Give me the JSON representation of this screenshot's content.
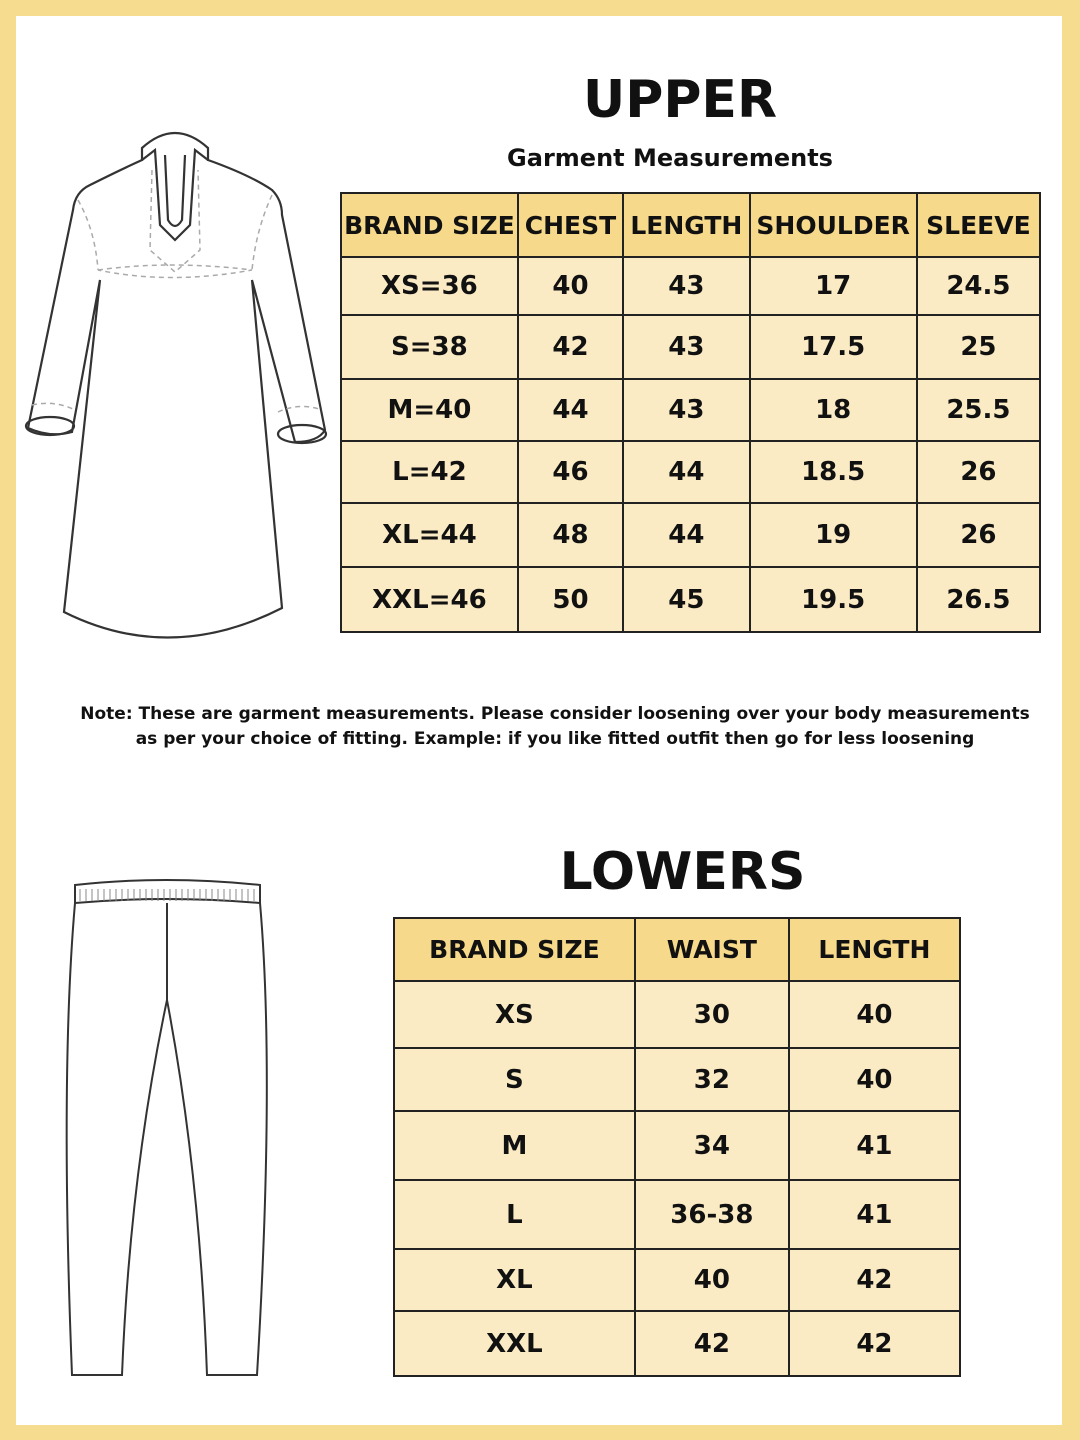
{
  "upper": {
    "title": "UPPER",
    "subtitle": "Garment Measurements",
    "headers": [
      "BRAND SIZE",
      "CHEST",
      "LENGTH",
      "SHOULDER",
      "SLEEVE"
    ],
    "rows": [
      [
        "XS=36",
        "40",
        "43",
        "17",
        "24.5"
      ],
      [
        "S=38",
        "42",
        "43",
        "17.5",
        "25"
      ],
      [
        "M=40",
        "44",
        "43",
        "18",
        "25.5"
      ],
      [
        "L=42",
        "46",
        "44",
        "18.5",
        "26"
      ],
      [
        "XL=44",
        "48",
        "44",
        "19",
        "26"
      ],
      [
        "XXL=46",
        "50",
        "45",
        "19.5",
        "26.5"
      ]
    ]
  },
  "note": {
    "line1": "Note: These are garment measurements. Please consider loosening over your body measurements",
    "line2": "as per your choice of fitting. Example: if you like fitted outfit then go for less loosening"
  },
  "lowers": {
    "title": "LOWERS",
    "headers": [
      "BRAND SIZE",
      "WAIST",
      "LENGTH"
    ],
    "rows": [
      [
        "XS",
        "30",
        "40"
      ],
      [
        "S",
        "32",
        "40"
      ],
      [
        "M",
        "34",
        "41"
      ],
      [
        "L",
        "36-38",
        "41"
      ],
      [
        "XL",
        "40",
        "42"
      ],
      [
        "XXL",
        "42",
        "42"
      ]
    ]
  },
  "colors": {
    "frame": "#f6dc8f",
    "header": "#f6d98a",
    "cell": "#faebc4"
  }
}
